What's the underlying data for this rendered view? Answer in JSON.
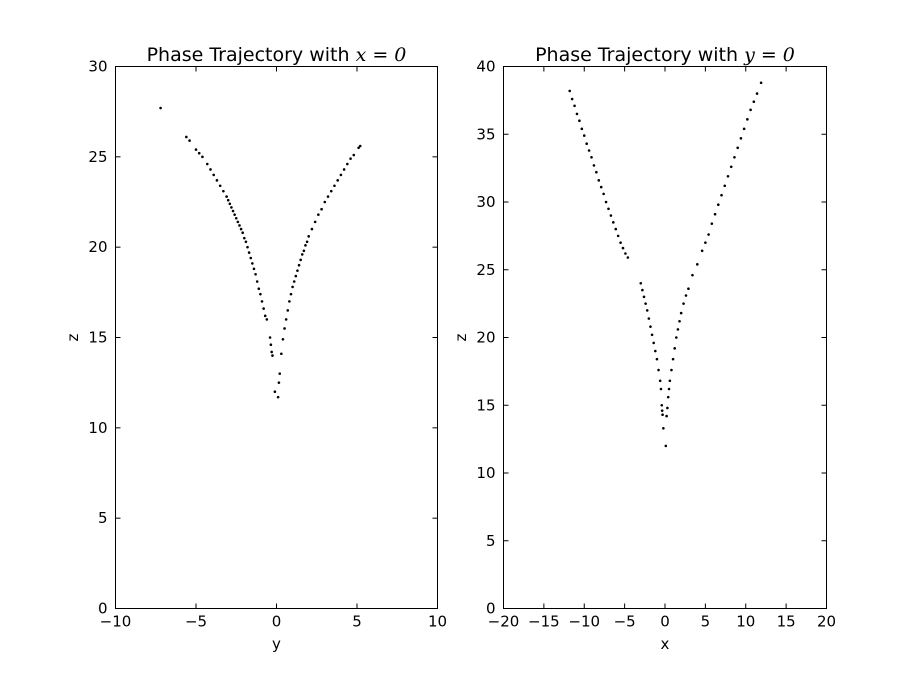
{
  "chart_data": [
    {
      "type": "scatter",
      "title_prefix": "Phase Trajectory with ",
      "title_math": "x = 0",
      "xlabel": "y",
      "ylabel": "z",
      "xlim": [
        -10,
        10
      ],
      "ylim": [
        0,
        30
      ],
      "xticks": [
        -10,
        -5,
        0,
        5,
        10
      ],
      "yticks": [
        0,
        5,
        10,
        15,
        20,
        25,
        30
      ],
      "xtick_labels": [
        "−10",
        "−5",
        "0",
        "5",
        "10"
      ],
      "ytick_labels": [
        "0",
        "5",
        "10",
        "15",
        "20",
        "25",
        "30"
      ],
      "grid": false,
      "point_color": "#000000",
      "series": [
        {
          "points": [
            [
              -7.2,
              27.7
            ],
            [
              -5.6,
              26.1
            ],
            [
              -5.4,
              25.9
            ],
            [
              -5.0,
              25.4
            ],
            [
              -4.8,
              25.2
            ],
            [
              -4.6,
              25.0
            ],
            [
              -4.3,
              24.6
            ],
            [
              -4.1,
              24.3
            ],
            [
              -3.9,
              24.0
            ],
            [
              -3.7,
              23.7
            ],
            [
              -3.5,
              23.4
            ],
            [
              -3.3,
              23.1
            ],
            [
              -3.1,
              22.8
            ],
            [
              -3.0,
              22.6
            ],
            [
              -2.9,
              22.4
            ],
            [
              -2.8,
              22.2
            ],
            [
              -2.7,
              22.0
            ],
            [
              -2.6,
              21.8
            ],
            [
              -2.5,
              21.6
            ],
            [
              -2.4,
              21.4
            ],
            [
              -2.3,
              21.2
            ],
            [
              -2.2,
              21.0
            ],
            [
              -2.1,
              20.8
            ],
            [
              -2.0,
              20.5
            ],
            [
              -1.9,
              20.3
            ],
            [
              -1.8,
              20.0
            ],
            [
              -1.7,
              19.7
            ],
            [
              -1.6,
              19.4
            ],
            [
              -1.5,
              19.1
            ],
            [
              -1.4,
              18.8
            ],
            [
              -1.3,
              18.5
            ],
            [
              -1.2,
              18.1
            ],
            [
              -1.1,
              17.7
            ],
            [
              -1.0,
              17.4
            ],
            [
              -0.9,
              17.0
            ],
            [
              -0.8,
              16.6
            ],
            [
              -0.7,
              16.2
            ],
            [
              -0.6,
              16.0
            ],
            [
              -0.4,
              15.0
            ],
            [
              -0.35,
              14.6
            ],
            [
              -0.3,
              14.2
            ],
            [
              -0.25,
              14.0
            ],
            [
              -0.1,
              12.0
            ],
            [
              0.1,
              11.7
            ],
            [
              0.15,
              12.5
            ],
            [
              0.2,
              13.0
            ],
            [
              0.3,
              14.1
            ],
            [
              0.4,
              14.9
            ],
            [
              0.5,
              15.5
            ],
            [
              0.6,
              16.0
            ],
            [
              0.7,
              16.5
            ],
            [
              0.8,
              17.0
            ],
            [
              0.9,
              17.4
            ],
            [
              1.0,
              17.8
            ],
            [
              1.1,
              18.1
            ],
            [
              1.2,
              18.4
            ],
            [
              1.3,
              18.7
            ],
            [
              1.4,
              19.0
            ],
            [
              1.5,
              19.3
            ],
            [
              1.6,
              19.6
            ],
            [
              1.7,
              19.8
            ],
            [
              1.8,
              20.1
            ],
            [
              1.9,
              20.3
            ],
            [
              2.0,
              20.6
            ],
            [
              2.2,
              21.0
            ],
            [
              2.4,
              21.4
            ],
            [
              2.6,
              21.8
            ],
            [
              2.8,
              22.1
            ],
            [
              3.0,
              22.5
            ],
            [
              3.2,
              22.8
            ],
            [
              3.4,
              23.1
            ],
            [
              3.6,
              23.4
            ],
            [
              3.8,
              23.7
            ],
            [
              4.0,
              24.0
            ],
            [
              4.2,
              24.3
            ],
            [
              4.4,
              24.6
            ],
            [
              4.6,
              24.9
            ],
            [
              4.8,
              25.1
            ],
            [
              5.1,
              25.5
            ],
            [
              5.2,
              25.6
            ]
          ]
        }
      ]
    },
    {
      "type": "scatter",
      "title_prefix": "Phase Trajectory with ",
      "title_math": "y = 0",
      "xlabel": "x",
      "ylabel": "z",
      "xlim": [
        -20,
        20
      ],
      "ylim": [
        0,
        40
      ],
      "xticks": [
        -20,
        -15,
        -10,
        -5,
        0,
        5,
        10,
        15,
        20
      ],
      "yticks": [
        0,
        5,
        10,
        15,
        20,
        25,
        30,
        35,
        40
      ],
      "xtick_labels": [
        "−20",
        "−15",
        "−10",
        "−5",
        "0",
        "5",
        "10",
        "15",
        "20"
      ],
      "ytick_labels": [
        "0",
        "5",
        "10",
        "15",
        "20",
        "25",
        "30",
        "35",
        "40"
      ],
      "grid": false,
      "point_color": "#000000",
      "series": [
        {
          "points": [
            [
              -11.8,
              38.2
            ],
            [
              -11.5,
              37.6
            ],
            [
              -11.2,
              37.1
            ],
            [
              -10.9,
              36.5
            ],
            [
              -10.6,
              36.0
            ],
            [
              -10.3,
              35.4
            ],
            [
              -10.0,
              34.9
            ],
            [
              -9.7,
              34.3
            ],
            [
              -9.4,
              33.8
            ],
            [
              -9.1,
              33.3
            ],
            [
              -8.8,
              32.7
            ],
            [
              -8.5,
              32.2
            ],
            [
              -8.2,
              31.6
            ],
            [
              -7.9,
              31.1
            ],
            [
              -7.6,
              30.6
            ],
            [
              -7.3,
              30.0
            ],
            [
              -7.0,
              29.5
            ],
            [
              -6.7,
              29.0
            ],
            [
              -6.4,
              28.5
            ],
            [
              -6.1,
              28.0
            ],
            [
              -5.8,
              27.5
            ],
            [
              -5.5,
              27.0
            ],
            [
              -5.2,
              26.6
            ],
            [
              -4.9,
              26.2
            ],
            [
              -4.6,
              25.9
            ],
            [
              -3.0,
              24.0
            ],
            [
              -2.8,
              23.5
            ],
            [
              -2.6,
              23.0
            ],
            [
              -2.4,
              22.5
            ],
            [
              -2.2,
              22.0
            ],
            [
              -2.0,
              21.4
            ],
            [
              -1.8,
              20.8
            ],
            [
              -1.6,
              20.2
            ],
            [
              -1.4,
              19.6
            ],
            [
              -1.2,
              19.0
            ],
            [
              -1.0,
              18.4
            ],
            [
              -0.8,
              17.6
            ],
            [
              -0.6,
              16.8
            ],
            [
              -0.5,
              16.2
            ],
            [
              -0.4,
              15.0
            ],
            [
              -0.35,
              14.6
            ],
            [
              -0.3,
              14.3
            ],
            [
              -0.2,
              13.3
            ],
            [
              0.1,
              12.0
            ],
            [
              0.2,
              14.2
            ],
            [
              0.3,
              14.8
            ],
            [
              0.4,
              15.6
            ],
            [
              0.5,
              16.2
            ],
            [
              0.6,
              16.8
            ],
            [
              0.8,
              17.6
            ],
            [
              1.0,
              18.4
            ],
            [
              1.2,
              19.2
            ],
            [
              1.4,
              20.0
            ],
            [
              1.6,
              20.6
            ],
            [
              1.8,
              21.2
            ],
            [
              2.0,
              21.8
            ],
            [
              2.3,
              22.5
            ],
            [
              2.6,
              23.1
            ],
            [
              2.9,
              23.6
            ],
            [
              3.4,
              24.6
            ],
            [
              4.0,
              25.4
            ],
            [
              4.6,
              26.4
            ],
            [
              5.0,
              27.0
            ],
            [
              5.4,
              27.6
            ],
            [
              5.8,
              28.4
            ],
            [
              6.2,
              29.1
            ],
            [
              6.6,
              29.8
            ],
            [
              7.0,
              30.5
            ],
            [
              7.4,
              31.2
            ],
            [
              7.8,
              31.9
            ],
            [
              8.2,
              32.6
            ],
            [
              8.6,
              33.3
            ],
            [
              9.0,
              34.0
            ],
            [
              9.4,
              34.7
            ],
            [
              9.8,
              35.4
            ],
            [
              10.2,
              36.1
            ],
            [
              10.6,
              36.8
            ],
            [
              11.0,
              37.4
            ],
            [
              11.4,
              38.0
            ],
            [
              11.9,
              38.8
            ]
          ]
        }
      ]
    }
  ]
}
